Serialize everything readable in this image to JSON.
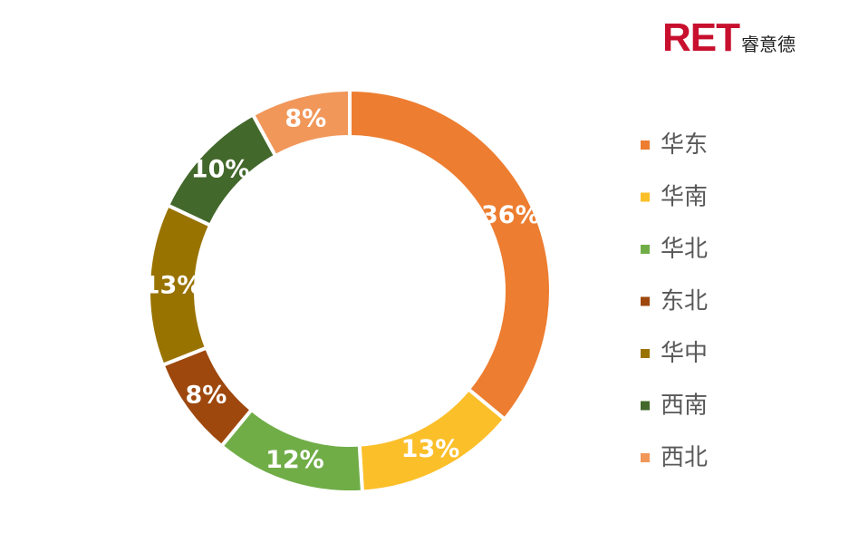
{
  "logo": {
    "mark": "RET",
    "sub": "睿意德"
  },
  "chart_data": {
    "type": "pie",
    "donut": true,
    "title": "",
    "legend_position": "right",
    "slices": [
      {
        "label": "华东",
        "value": 36,
        "display": "36%",
        "color": "#ed7d31"
      },
      {
        "label": "华南",
        "value": 13,
        "display": "13%",
        "color": "#fbbf2a"
      },
      {
        "label": "华北",
        "value": 12,
        "display": "12%",
        "color": "#70ad47"
      },
      {
        "label": "东北",
        "value": 8,
        "display": "8%",
        "color": "#9e480e"
      },
      {
        "label": "华中",
        "value": 13,
        "display": "13%",
        "color": "#997300"
      },
      {
        "label": "西南",
        "value": 10,
        "display": "10%",
        "color": "#43682b"
      },
      {
        "label": "西北",
        "value": 8,
        "display": "8%",
        "color": "#f1975a"
      }
    ]
  }
}
